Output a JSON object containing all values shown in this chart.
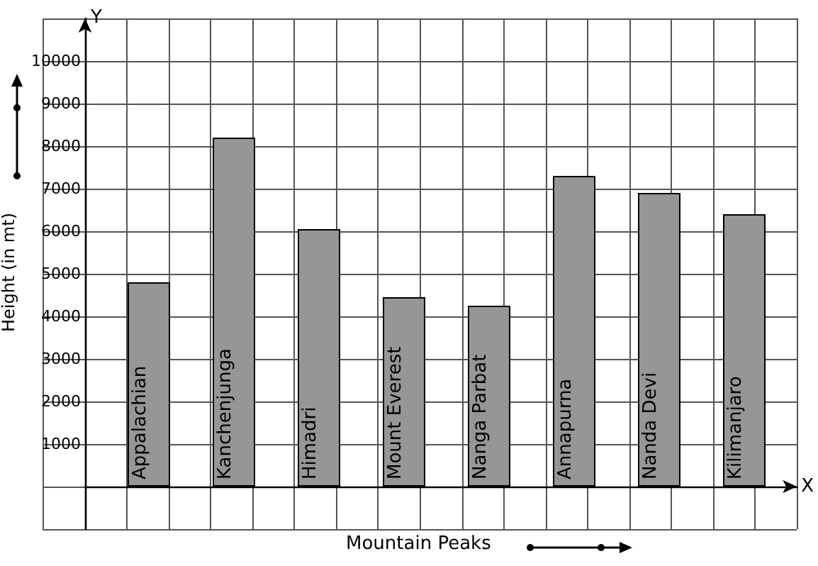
{
  "chart_data": {
    "type": "bar",
    "xlabel": "Mountain Peaks",
    "ylabel": "Height (in mt)",
    "annotations": [
      "Y",
      "X"
    ],
    "categories": [
      "Appalachian",
      "Kanchenjunga",
      "Himadri",
      "Mount Everest",
      "Nanga Parbat",
      "Annapurna",
      "Nanda Devi",
      "Kilimanjaro"
    ],
    "values": [
      4800,
      8200,
      6050,
      4450,
      4250,
      7300,
      6900,
      6400
    ],
    "color": "#969696",
    "ylim": [
      -1000,
      11000
    ],
    "yticks": [
      {
        "value": -1000,
        "label": null
      },
      {
        "value": 0,
        "label": null
      },
      1000,
      2000,
      3000,
      4000,
      5000,
      6000,
      7000,
      8000,
      9000,
      10000,
      {
        "value": 11000,
        "label": null
      }
    ],
    "grid": true
  }
}
